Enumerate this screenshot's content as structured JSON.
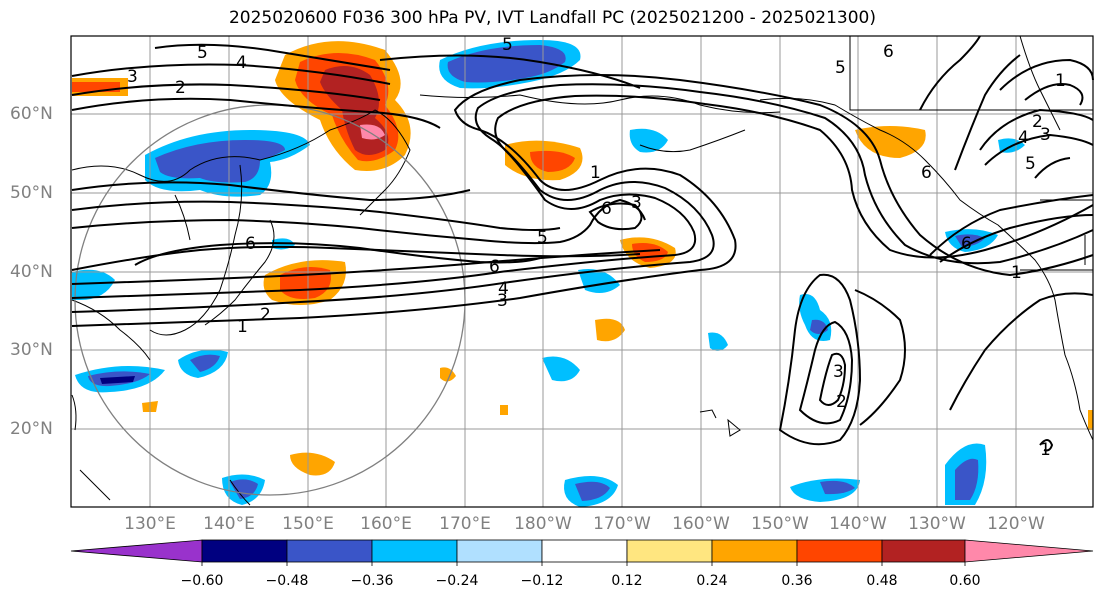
{
  "title": "2025020600 F036 300 hPa PV, IVT Landfall PC (2025021200 - 2025021300)",
  "lat_labels": [
    "60°N",
    "50°N",
    "40°N",
    "30°N",
    "20°N"
  ],
  "lon_labels": [
    "130°E",
    "140°E",
    "150°E",
    "160°E",
    "170°E",
    "180°W",
    "170°W",
    "160°W",
    "150°W",
    "140°W",
    "130°W",
    "120°W"
  ],
  "contour_labels": [
    "5",
    "4",
    "3",
    "2",
    "1",
    "6",
    "5",
    "6",
    "3",
    "6",
    "5",
    "6",
    "4",
    "3",
    "2",
    "1",
    "3",
    "2",
    "6",
    "5",
    "4",
    "3",
    "2",
    "1",
    "1",
    "6",
    "5",
    "1"
  ],
  "colorbar": {
    "tick_labels": [
      "−0.60",
      "−0.48",
      "−0.36",
      "−0.24",
      "−0.12",
      "0.12",
      "0.24",
      "0.36",
      "0.48",
      "0.60"
    ],
    "colors": [
      "#9932cc",
      "#000080",
      "#3a55c8",
      "#00bfff",
      "#b0e0ff",
      "#ffffff",
      "#ffe680",
      "#ffa500",
      "#ff4500",
      "#b22222",
      "#ff88aa"
    ]
  },
  "colors": {
    "negative_strong": "#3a55c8",
    "negative_mid": "#00bfff",
    "negative_weak": "#b0e0ff",
    "positive_weak": "#ffe680",
    "positive_mid": "#ffa500",
    "positive_strong": "#ff4500",
    "positive_max": "#b22222",
    "contour": "#000000",
    "grid": "#999999",
    "coast": "#000000"
  }
}
